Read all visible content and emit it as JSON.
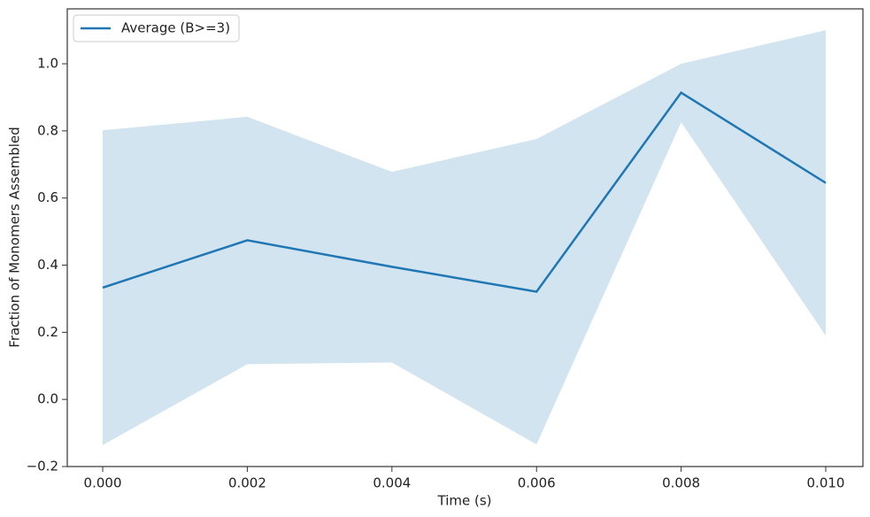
{
  "chart_data": {
    "type": "line",
    "x_label": "Time (s)",
    "y_label": "Fraction of Monomers Assembled",
    "x": [
      0,
      0.002,
      0.004,
      0.006,
      0.008,
      0.01
    ],
    "series": [
      {
        "name": "Average (B>=3)",
        "color": "#1f77b4",
        "values": [
          0.333,
          0.474,
          0.395,
          0.321,
          0.914,
          0.645
        ],
        "band": {
          "color": "#1f77b4",
          "opacity": 0.2,
          "lower": [
            -0.136,
            0.105,
            0.11,
            -0.134,
            0.826,
            0.19
          ],
          "upper": [
            0.802,
            0.842,
            0.678,
            0.776,
            1.0,
            1.1
          ]
        }
      }
    ],
    "xlim": [
      -0.00049,
      0.010514
    ],
    "ylim": [
      -0.2,
      1.1636
    ],
    "xticks": [
      {
        "value": 0,
        "label": "0.000"
      },
      {
        "value": 0.002,
        "label": "0.002"
      },
      {
        "value": 0.004,
        "label": "0.004"
      },
      {
        "value": 0.006,
        "label": "0.006"
      },
      {
        "value": 0.008,
        "label": "0.008"
      },
      {
        "value": 0.01,
        "label": "0.010"
      }
    ],
    "yticks": [
      {
        "value": -0.2,
        "label": "−0.2"
      },
      {
        "value": 0,
        "label": "0.0"
      },
      0.2,
      0.4,
      0.6,
      0.8,
      {
        "value": 1,
        "label": "1.0"
      }
    ],
    "grid": false,
    "legend": "upper left"
  }
}
